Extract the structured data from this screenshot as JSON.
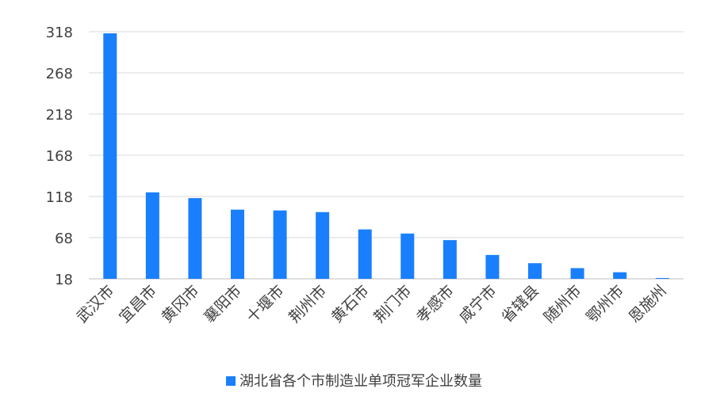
{
  "chart_data": {
    "type": "bar",
    "title": "",
    "xlabel": "",
    "ylabel": "",
    "categories": [
      "武汉市",
      "宜昌市",
      "黄冈市",
      "襄阳市",
      "十堰市",
      "荆州市",
      "黄石市",
      "荆门市",
      "孝感市",
      "咸宁市",
      "省辖县",
      "随州市",
      "鄂州市",
      "恩施州"
    ],
    "series": [
      {
        "name": "湖北省各个市制造业单项冠军企业数量",
        "values": [
          316,
          123,
          116,
          102,
          101,
          99,
          78,
          73,
          65,
          47,
          37,
          31,
          26,
          19
        ],
        "color": "#1a7ffc"
      }
    ],
    "yticks": [
      18,
      68,
      118,
      168,
      218,
      268,
      318
    ],
    "ylim": [
      18,
      318
    ],
    "grid": true,
    "legend_position": "bottom"
  }
}
